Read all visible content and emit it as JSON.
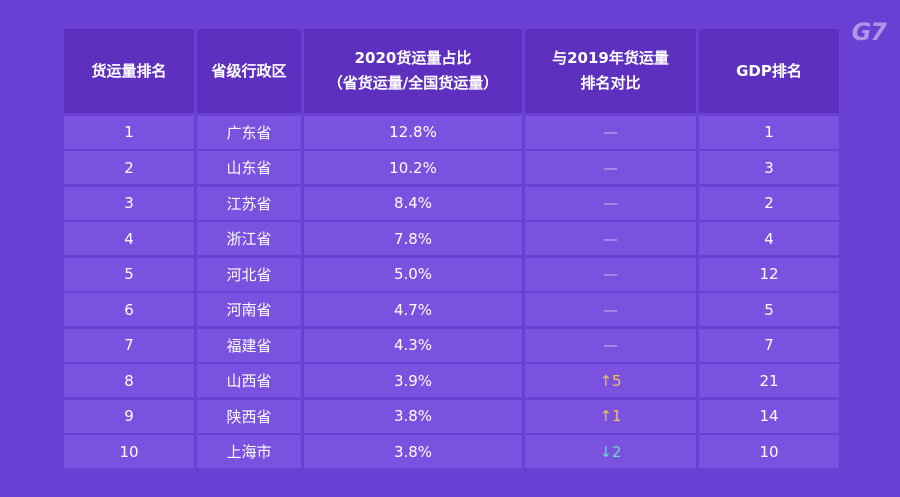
{
  "logo": "G7",
  "headers": [
    [
      "货运量排名"
    ],
    [
      "省级行政区"
    ],
    [
      "2020货运量占比",
      "（省货运量/全国货运量）"
    ],
    [
      "与2019年货运量",
      "排名对比"
    ],
    [
      "GDP排名"
    ]
  ],
  "rows": [
    {
      "rank": "1",
      "province": "广东省",
      "share": "12.8%",
      "change_arrow": "",
      "change_value": "—",
      "gdp": "1"
    },
    {
      "rank": "2",
      "province": "山东省",
      "share": "10.2%",
      "change_arrow": "",
      "change_value": "—",
      "gdp": "3"
    },
    {
      "rank": "3",
      "province": "江苏省",
      "share": "8.4%",
      "change_arrow": "",
      "change_value": "—",
      "gdp": "2"
    },
    {
      "rank": "4",
      "province": "浙江省",
      "share": "7.8%",
      "change_arrow": "",
      "change_value": "—",
      "gdp": "4"
    },
    {
      "rank": "5",
      "province": "河北省",
      "share": "5.0%",
      "change_arrow": "",
      "change_value": "—",
      "gdp": "12"
    },
    {
      "rank": "6",
      "province": "河南省",
      "share": "4.7%",
      "change_arrow": "",
      "change_value": "—",
      "gdp": "5"
    },
    {
      "rank": "7",
      "province": "福建省",
      "share": "4.3%",
      "change_arrow": "",
      "change_value": "—",
      "gdp": "7"
    },
    {
      "rank": "8",
      "province": "山西省",
      "share": "3.9%",
      "change_arrow": "↑",
      "change_value": "5",
      "gdp": "21"
    },
    {
      "rank": "9",
      "province": "陕西省",
      "share": "3.8%",
      "change_arrow": "↑",
      "change_value": "1",
      "gdp": "14"
    },
    {
      "rank": "10",
      "province": "上海市",
      "share": "3.8%",
      "change_arrow": "↓",
      "change_value": "2",
      "gdp": "10"
    }
  ]
}
